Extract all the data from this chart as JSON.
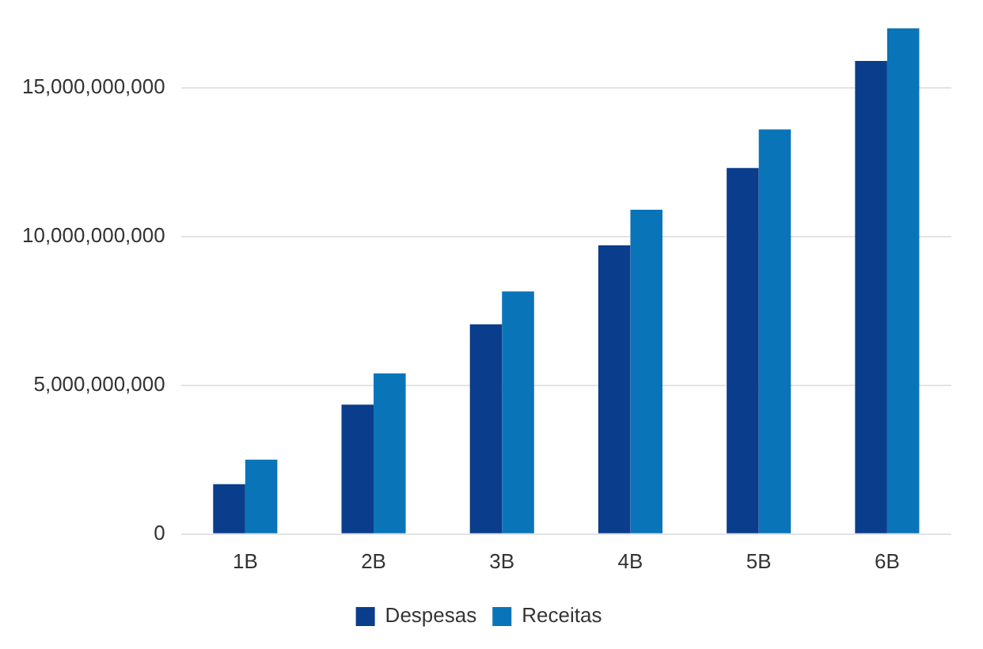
{
  "chart_data": {
    "type": "bar",
    "categories": [
      "1B",
      "2B",
      "3B",
      "4B",
      "5B",
      "6B"
    ],
    "series": [
      {
        "name": "Despesas",
        "color": "#0a3d8c",
        "values": [
          1680000000,
          4350000000,
          7050000000,
          9700000000,
          12300000000,
          15900000000
        ]
      },
      {
        "name": "Receitas",
        "color": "#0a74b8",
        "values": [
          2500000000,
          5400000000,
          8150000000,
          10900000000,
          13600000000,
          17000000000
        ]
      }
    ],
    "ylim": [
      0,
      17000000000
    ],
    "yticks": [
      0,
      {
        "value": 5000000000,
        "label": "5,000,000,000"
      },
      {
        "value": 10000000000,
        "label": "10,000,000,000"
      },
      {
        "value": 15000000000,
        "label": "15,000,000,000"
      }
    ],
    "grid": "y",
    "legend": "bottom"
  }
}
